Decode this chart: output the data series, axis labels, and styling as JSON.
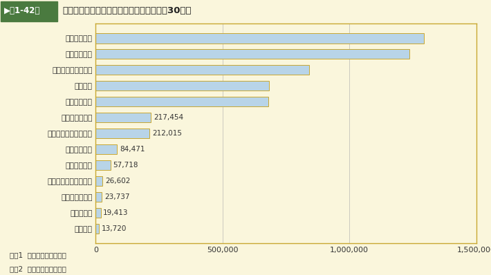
{
  "title_prefix_box": "▶第1-42図",
  "title_text": "交通違反取締り（告知・送致）件数（平成30年）",
  "categories": [
    "積載違反",
    "無免許運転",
    "整備不良車運転",
    "酒酔い・酒気帯び運転",
    "免許証不携帯",
    "踏切不停止等",
    "追越し・通行区分違反",
    "駐（停）車違反",
    "通行禁止違反",
    "信号無視",
    "携帯電話使用等違反",
    "最高速度違反",
    "一時停止違反"
  ],
  "values": [
    13720,
    19413,
    23737,
    26602,
    57718,
    84471,
    212015,
    217454,
    681389,
    681645,
    842199,
    1237730,
    1293673
  ],
  "bar_color": "#b8d4e8",
  "bar_edge": "#c8a832",
  "background_color": "#faf6dc",
  "header_bg": "#4a7a3f",
  "header_text_color": "#ffffff",
  "grid_color": "#aaaaaa",
  "note1": "注、1  警察庁資料による。",
  "note2": "　　2  高速道路分を含む。",
  "xlim": [
    0,
    1500000
  ],
  "xticks": [
    0,
    500000,
    1000000,
    1500000
  ],
  "xtick_labels": [
    "0",
    "500,000",
    "1,000,000",
    "1,500,000"
  ],
  "label_threshold": 500000
}
